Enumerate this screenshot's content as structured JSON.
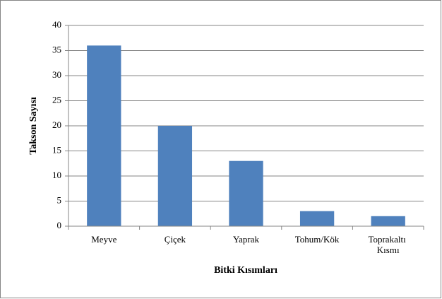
{
  "chart_data": {
    "type": "bar",
    "categories": [
      "Meyve",
      "Çiçek",
      "Yaprak",
      "Tohum/Kök",
      "Toprakaltı Kısmı"
    ],
    "values": [
      36,
      20,
      13,
      3,
      2
    ],
    "color": "#4f81bd",
    "xlabel": "Bitki Kısımları",
    "ylabel": "Takson Sayısı",
    "ylim": [
      0,
      40
    ],
    "yticks": [
      0,
      5,
      10,
      15,
      20,
      25,
      30,
      35,
      40
    ],
    "grid": true
  }
}
